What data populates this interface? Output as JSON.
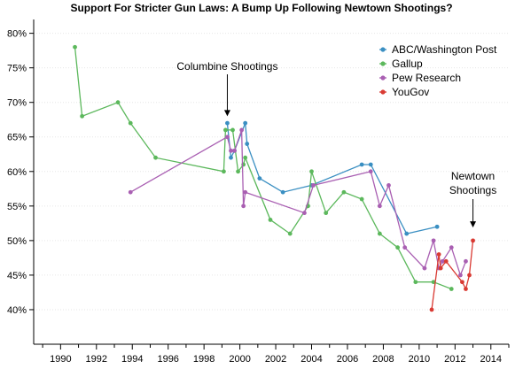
{
  "chart_data": {
    "type": "line",
    "title": "Support For Stricter Gun Laws: A Bump Up Following Newtown Shootings?",
    "xlabel": "",
    "ylabel": "",
    "xlim": [
      1988.5,
      2015
    ],
    "ylim": [
      35,
      82
    ],
    "x_ticks": [
      1990,
      1992,
      1994,
      1996,
      1998,
      2000,
      2002,
      2004,
      2006,
      2008,
      2010,
      2012,
      2014
    ],
    "x_tick_labels": [
      "1990",
      "1992",
      "1994",
      "1996",
      "1998",
      "2000",
      "2002",
      "2004",
      "2006",
      "2008",
      "2010",
      "2012",
      "2014"
    ],
    "y_ticks": [
      40,
      45,
      50,
      55,
      60,
      65,
      70,
      75,
      80
    ],
    "y_tick_labels": [
      "40%",
      "45%",
      "50%",
      "55%",
      "60%",
      "65%",
      "70%",
      "75%",
      "80%"
    ],
    "grid": true,
    "legend_position": "top-right",
    "series": [
      {
        "name": "ABC/Washington Post",
        "color": "#3a8fc2",
        "points": [
          [
            1999.3,
            67
          ],
          [
            1999.5,
            62
          ],
          [
            1999.7,
            63
          ],
          [
            2000.3,
            67
          ],
          [
            2000.4,
            64
          ],
          [
            2001.1,
            59
          ],
          [
            2002.4,
            57
          ],
          [
            2004.0,
            58
          ],
          [
            2006.8,
            61
          ],
          [
            2007.3,
            61
          ],
          [
            2009.3,
            51
          ],
          [
            2011.0,
            52
          ]
        ]
      },
      {
        "name": "Gallup",
        "color": "#5cb85c",
        "points": [
          [
            1990.8,
            78
          ],
          [
            1991.2,
            68
          ],
          [
            1993.2,
            70
          ],
          [
            1993.9,
            67
          ],
          [
            1995.3,
            62
          ],
          [
            1999.1,
            60
          ],
          [
            1999.2,
            66
          ],
          [
            1999.6,
            66
          ],
          [
            1999.9,
            60
          ],
          [
            2000.2,
            61
          ],
          [
            2000.3,
            62
          ],
          [
            2001.7,
            53
          ],
          [
            2002.8,
            51
          ],
          [
            2003.8,
            55
          ],
          [
            2004.0,
            60
          ],
          [
            2004.8,
            54
          ],
          [
            2005.8,
            57
          ],
          [
            2006.8,
            56
          ],
          [
            2007.8,
            51
          ],
          [
            2008.8,
            49
          ],
          [
            2009.8,
            44
          ],
          [
            2010.8,
            44
          ],
          [
            2011.8,
            43
          ]
        ]
      },
      {
        "name": "Pew Research",
        "color": "#a95fb2",
        "points": [
          [
            1993.9,
            57
          ],
          [
            1999.3,
            65
          ],
          [
            1999.5,
            63
          ],
          [
            1999.7,
            63
          ],
          [
            2000.1,
            66
          ],
          [
            2000.2,
            55
          ],
          [
            2000.3,
            57
          ],
          [
            2003.6,
            54
          ],
          [
            2004.1,
            58
          ],
          [
            2007.3,
            60
          ],
          [
            2007.8,
            55
          ],
          [
            2008.3,
            58
          ],
          [
            2009.2,
            49
          ],
          [
            2010.3,
            46
          ],
          [
            2010.8,
            50
          ],
          [
            2011.1,
            46
          ],
          [
            2011.3,
            47
          ],
          [
            2011.8,
            49
          ],
          [
            2012.3,
            45
          ],
          [
            2012.6,
            47
          ]
        ]
      },
      {
        "name": "YouGov",
        "color": "#d93a33",
        "points": [
          [
            2010.7,
            40
          ],
          [
            2011.1,
            48
          ],
          [
            2011.2,
            46
          ],
          [
            2011.5,
            47
          ],
          [
            2012.4,
            44
          ],
          [
            2012.6,
            43
          ],
          [
            2012.8,
            45
          ],
          [
            2013.0,
            50
          ]
        ]
      }
    ],
    "annotations": [
      {
        "text": "Columbine Shootings",
        "x": 1999.3,
        "y": 68
      },
      {
        "text": "Newtown",
        "x": 2013.0,
        "y": 51
      },
      {
        "text": "Shootings",
        "x": 2013.0,
        "y": 51
      }
    ]
  }
}
